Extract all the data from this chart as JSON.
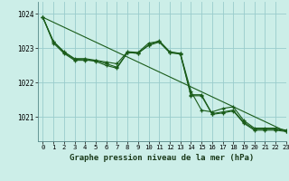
{
  "title": "Graphe pression niveau de la mer (hPa)",
  "background_color": "#cceee8",
  "grid_color": "#99cccc",
  "line_color": "#1a5c1a",
  "xlim": [
    -0.5,
    23
  ],
  "ylim": [
    1020.3,
    1024.35
  ],
  "yticks": [
    1021,
    1022,
    1023,
    1024
  ],
  "xticks": [
    0,
    1,
    2,
    3,
    4,
    5,
    6,
    7,
    8,
    9,
    10,
    11,
    12,
    13,
    14,
    15,
    16,
    17,
    18,
    19,
    20,
    21,
    22,
    23
  ],
  "xlabel_fontsize": 6.5,
  "tick_fontsize": 5.5,
  "series": [
    {
      "x": [
        0,
        1,
        2,
        3,
        4,
        5,
        6,
        7,
        8,
        9,
        10,
        11,
        12,
        13,
        14,
        15,
        16,
        17,
        18,
        19,
        20,
        21,
        22,
        23
      ],
      "y": [
        1023.9,
        1023.15,
        1022.85,
        1022.65,
        1022.65,
        1022.65,
        1022.6,
        1022.55,
        1022.9,
        1022.88,
        1023.15,
        1023.2,
        1022.88,
        1022.85,
        1021.65,
        1021.65,
        1021.1,
        1021.15,
        1021.2,
        1020.85,
        1020.65,
        1020.65,
        1020.65,
        1020.6
      ]
    },
    {
      "x": [
        0,
        1,
        2,
        3,
        4,
        5,
        6,
        7,
        8,
        9,
        10,
        11,
        12,
        13,
        14,
        15,
        16,
        17,
        18,
        19,
        20,
        21,
        22,
        23
      ],
      "y": [
        1023.9,
        1023.2,
        1022.9,
        1022.7,
        1022.7,
        1022.65,
        1022.55,
        1022.45,
        1022.88,
        1022.85,
        1023.1,
        1023.22,
        1022.9,
        1022.85,
        1021.75,
        1021.2,
        1021.15,
        1021.25,
        1021.3,
        1020.9,
        1020.68,
        1020.68,
        1020.68,
        1020.62
      ]
    },
    {
      "x": [
        0,
        1,
        2,
        3,
        4,
        5,
        6,
        7,
        8,
        9,
        10,
        11,
        12,
        13,
        14,
        15,
        16,
        17,
        18,
        19,
        20,
        21,
        22,
        23
      ],
      "y": [
        1023.9,
        1023.18,
        1022.88,
        1022.68,
        1022.67,
        1022.62,
        1022.5,
        1022.42,
        1022.87,
        1022.86,
        1023.08,
        1023.18,
        1022.87,
        1022.83,
        1021.62,
        1021.62,
        1021.08,
        1021.12,
        1021.18,
        1020.82,
        1020.62,
        1020.62,
        1020.62,
        1020.58
      ]
    },
    {
      "x": [
        0,
        23
      ],
      "y": [
        1023.9,
        1020.58
      ]
    }
  ]
}
